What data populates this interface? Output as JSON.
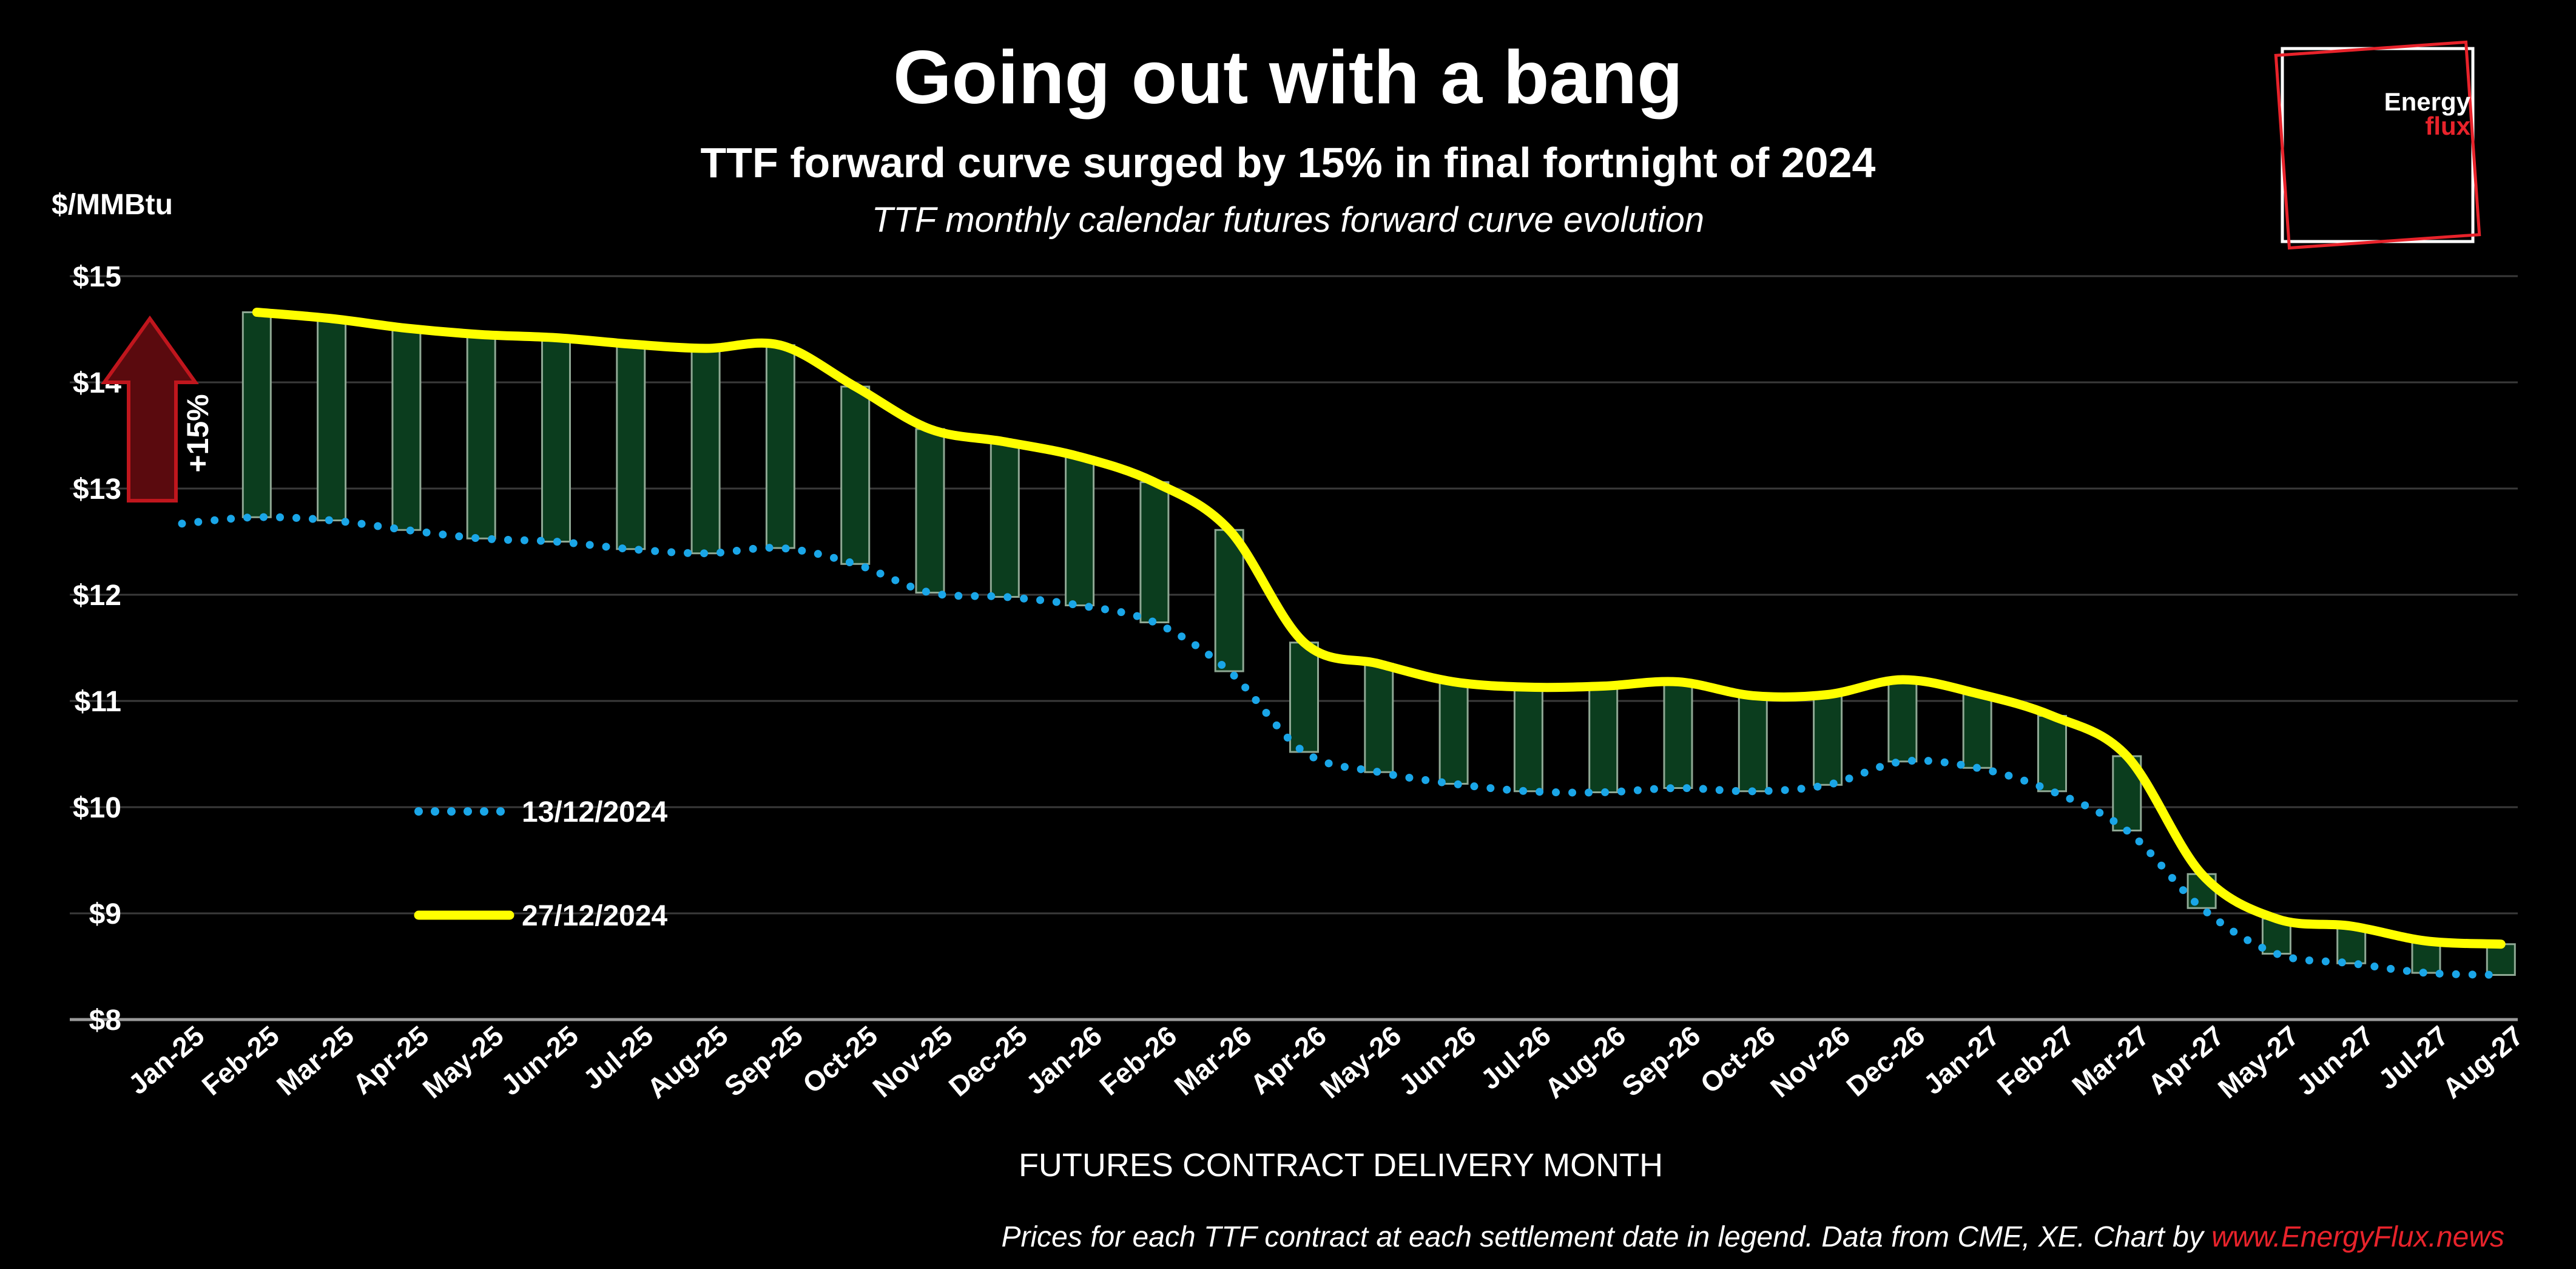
{
  "header": {
    "title": "Going out with a bang",
    "subtitle": "TTF forward curve surged by 15% in final fortnight of 2024",
    "caption": "TTF monthly calendar futures forward curve evolution"
  },
  "logo": {
    "line1": "Energy",
    "line2": "flux"
  },
  "annotation": {
    "label": "+15%"
  },
  "footer": {
    "text": "Prices for each TTF contract at each settlement date in legend. Data from CME, XE. Chart by ",
    "link": "www.EnergyFlux.news"
  },
  "colors": {
    "background": "#000000",
    "series_dec13": "#1aa6e8",
    "series_dec27": "#ffff00",
    "bar_fill": "#0b3d1e",
    "bar_edge": "#8fa894",
    "arrow": "#c0161d",
    "brand_red": "#e8232b"
  },
  "chart_data": {
    "type": "line",
    "title": "Going out with a bang",
    "ylabel": "$/MMBtu",
    "xlabel": "FUTURES CONTRACT DELIVERY MONTH",
    "ylim": [
      8,
      15
    ],
    "y_ticks": [
      "$8",
      "$9",
      "$10",
      "$11",
      "$12",
      "$13",
      "$14",
      "$15"
    ],
    "grid": true,
    "legend_position": "left-middle",
    "categories": [
      "Jan-25",
      "Feb-25",
      "Mar-25",
      "Apr-25",
      "May-25",
      "Jun-25",
      "Jul-25",
      "Aug-25",
      "Sep-25",
      "Oct-25",
      "Nov-25",
      "Dec-25",
      "Jan-26",
      "Feb-26",
      "Mar-26",
      "Apr-26",
      "May-26",
      "Jun-26",
      "Jul-26",
      "Aug-26",
      "Sep-26",
      "Oct-26",
      "Nov-26",
      "Dec-26",
      "Jan-27",
      "Feb-27",
      "Mar-27",
      "Apr-27",
      "May-27",
      "Jun-27",
      "Jul-27",
      "Aug-27"
    ],
    "series": [
      {
        "name": "13/12/2024",
        "style": "dotted",
        "values": [
          12.67,
          12.73,
          12.7,
          12.61,
          12.53,
          12.5,
          12.43,
          12.39,
          12.44,
          12.29,
          12.02,
          11.98,
          11.9,
          11.74,
          11.28,
          10.52,
          10.33,
          10.22,
          10.15,
          10.14,
          10.18,
          10.15,
          10.21,
          10.43,
          10.37,
          10.15,
          9.78,
          9.05,
          8.62,
          8.53,
          8.44,
          8.42
        ]
      },
      {
        "name": "27/12/2024",
        "style": "solid",
        "values": [
          null,
          14.66,
          14.6,
          14.51,
          14.45,
          14.42,
          14.36,
          14.32,
          14.35,
          13.96,
          13.56,
          13.44,
          13.3,
          13.06,
          12.61,
          11.55,
          11.35,
          11.18,
          11.13,
          11.14,
          11.18,
          11.05,
          11.06,
          11.2,
          11.07,
          10.86,
          10.48,
          9.37,
          8.95,
          8.88,
          8.74,
          8.71
        ]
      }
    ],
    "annotations": [
      {
        "text": "+15%"
      }
    ]
  }
}
